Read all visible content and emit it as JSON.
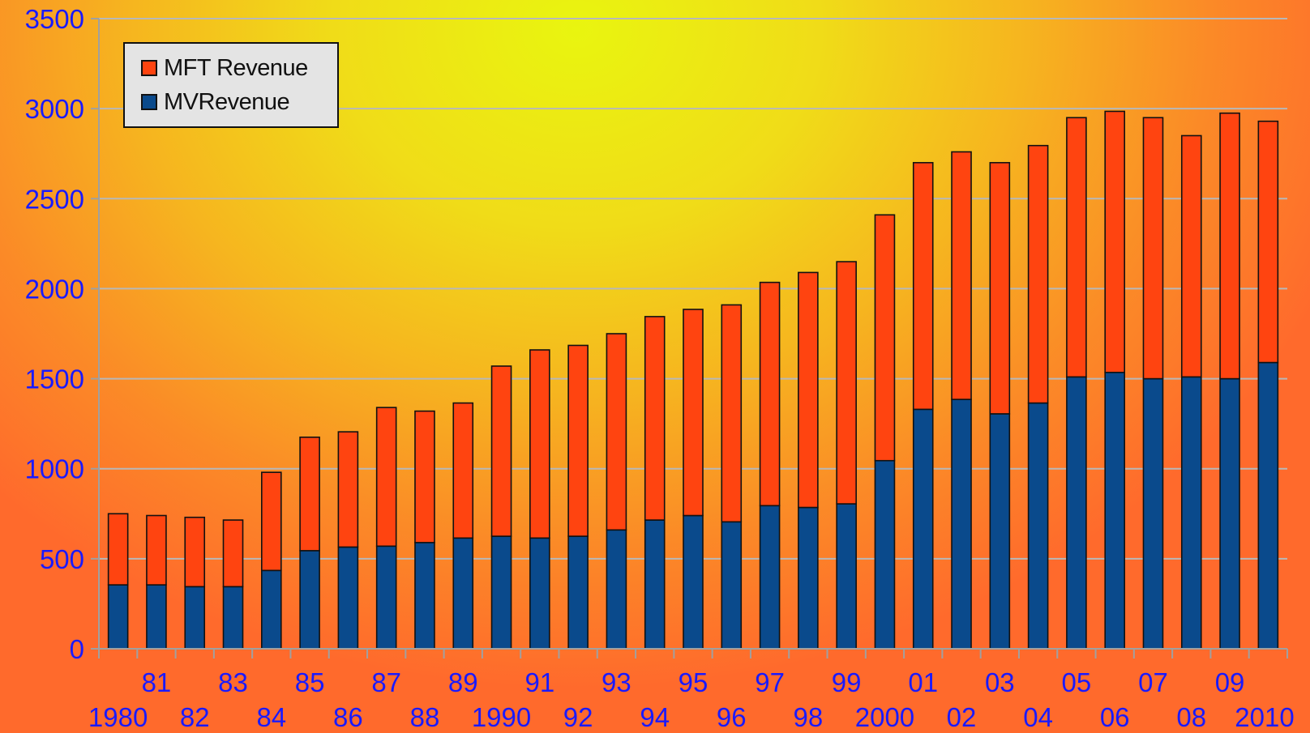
{
  "chart_data": {
    "type": "bar",
    "stacked": true,
    "categories": [
      "1980",
      "81",
      "82",
      "83",
      "84",
      "85",
      "86",
      "87",
      "88",
      "89",
      "1990",
      "91",
      "92",
      "93",
      "94",
      "95",
      "96",
      "97",
      "98",
      "99",
      "2000",
      "01",
      "02",
      "03",
      "04",
      "05",
      "06",
      "07",
      "08",
      "09",
      "2010"
    ],
    "series": [
      {
        "name": "MV Revenue",
        "color": "#0a4a8c",
        "values": [
          355,
          355,
          345,
          345,
          435,
          545,
          565,
          570,
          590,
          615,
          625,
          615,
          625,
          660,
          715,
          740,
          705,
          795,
          785,
          805,
          1045,
          1330,
          1385,
          1305,
          1365,
          1510,
          1535,
          1500,
          1510,
          1500,
          1590
        ]
      },
      {
        "name": "MFT Revenue",
        "color": "#ff4410",
        "values": [
          395,
          385,
          385,
          370,
          545,
          630,
          640,
          770,
          730,
          750,
          945,
          1045,
          1060,
          1090,
          1130,
          1145,
          1205,
          1240,
          1305,
          1345,
          1365,
          1370,
          1375,
          1395,
          1430,
          1440,
          1450,
          1450,
          1340,
          1475,
          1340
        ]
      }
    ],
    "totals": [
      750,
      740,
      730,
      715,
      980,
      1175,
      1205,
      1340,
      1320,
      1365,
      1570,
      1660,
      1685,
      1750,
      1845,
      1885,
      1910,
      2035,
      2090,
      2150,
      2410,
      2700,
      2760,
      2700,
      2795,
      2950,
      2985,
      2950,
      2850,
      2975,
      2930
    ],
    "ylim": [
      0,
      3500
    ],
    "yticks": [
      0,
      500,
      1000,
      1500,
      2000,
      2500,
      3000,
      3500
    ],
    "grid": true,
    "legend_position": "top-left",
    "legend": [
      "MFT Revenue",
      "MVRevenue"
    ],
    "title": "",
    "xlabel": "",
    "ylabel": ""
  }
}
